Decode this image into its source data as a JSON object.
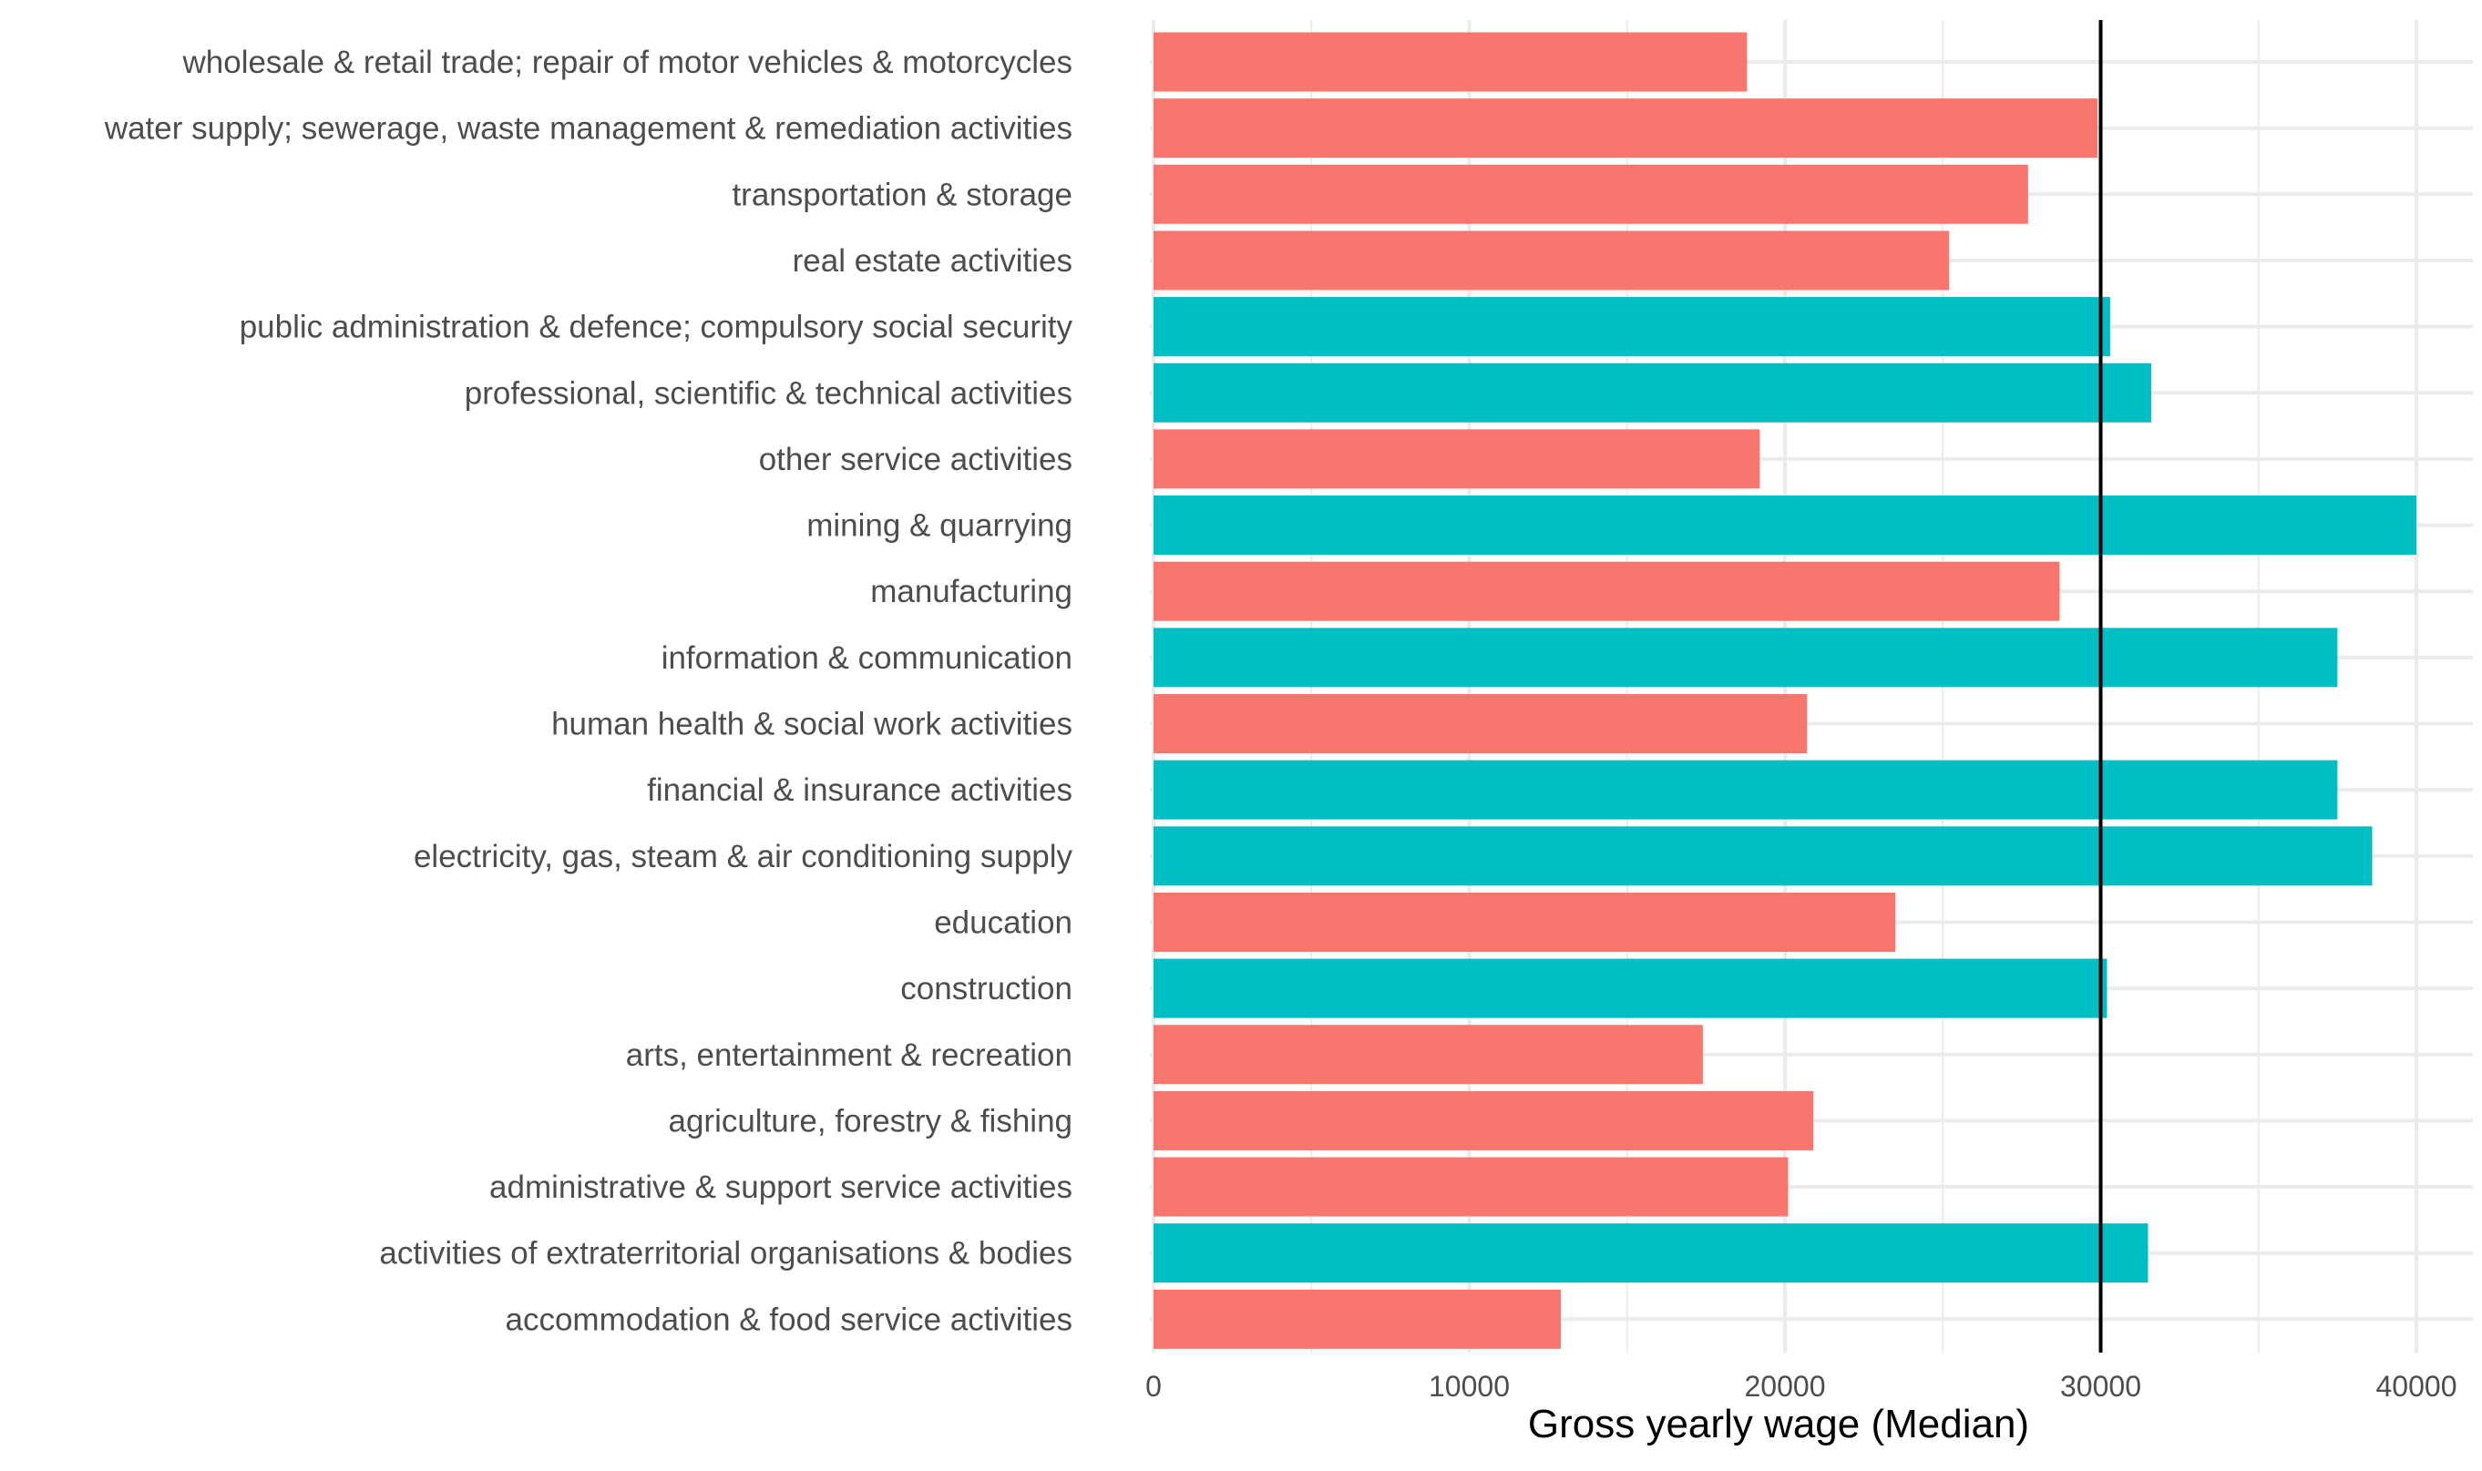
{
  "chart_data": {
    "type": "bar",
    "orientation": "horizontal",
    "title": "",
    "xlabel": "Gross yearly wage (Median)",
    "ylabel": "",
    "xlim": [
      0,
      40000
    ],
    "x_ticks": [
      0,
      10000,
      20000,
      30000,
      40000
    ],
    "x_tick_labels": [
      "0",
      "10000",
      "20000",
      "30000",
      "40000"
    ],
    "reference_line": {
      "value": 30000,
      "color": "#000000"
    },
    "grid": true,
    "legend": "none",
    "colors": {
      "below": "#F8766D",
      "above": "#00BFC4"
    },
    "categories": [
      "accommodation & food service activities",
      "activities of extraterritorial organisations & bodies",
      "administrative & support service activities",
      "agriculture, forestry & fishing",
      "arts, entertainment & recreation",
      "construction",
      "education",
      "electricity, gas, steam & air conditioning supply",
      "financial & insurance activities",
      "human health & social work activities",
      "information & communication",
      "manufacturing",
      "mining & quarrying",
      "other service activities",
      "professional, scientific & technical activities",
      "public administration & defence; compulsory social security",
      "real estate activities",
      "transportation & storage",
      "water supply; sewerage, waste management & remediation activities",
      "wholesale & retail trade; repair of motor vehicles & motorcycles"
    ],
    "values": [
      12900,
      31500,
      20100,
      20900,
      17400,
      30200,
      23500,
      38600,
      37500,
      20700,
      37500,
      28700,
      40000,
      19200,
      31600,
      30300,
      25200,
      27700,
      29900,
      18800
    ],
    "groups": [
      "below",
      "above",
      "below",
      "below",
      "below",
      "above",
      "below",
      "above",
      "above",
      "below",
      "above",
      "below",
      "above",
      "below",
      "above",
      "above",
      "below",
      "below",
      "below",
      "below"
    ]
  }
}
